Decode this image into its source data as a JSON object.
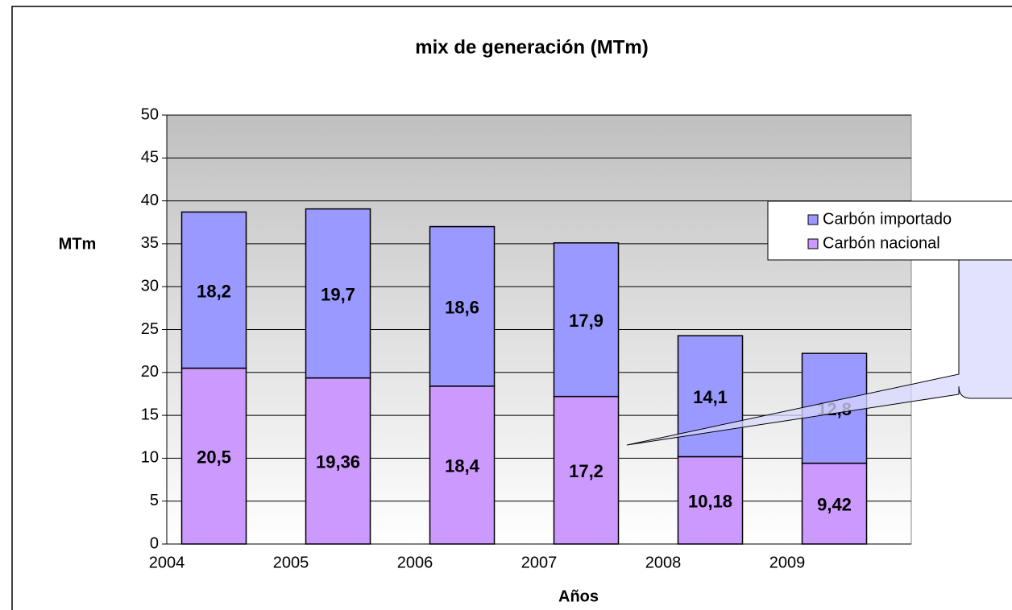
{
  "chart_data": {
    "type": "stacked-bar",
    "title": "mix de generación (MTm)",
    "x_label": "Años",
    "y_label": "MTm",
    "categories": [
      "2004",
      "2005",
      "2006",
      "2007",
      "2008",
      "2009"
    ],
    "series": [
      {
        "name": "Carbón nacional",
        "color": "#cc99ff",
        "values": [
          20.5,
          19.36,
          18.4,
          17.2,
          10.18,
          9.42
        ],
        "value_labels": [
          "20,5",
          "19,36",
          "18,4",
          "17,2",
          "10,18",
          "9,42"
        ]
      },
      {
        "name": "Carbón importado",
        "color": "#9999ff",
        "values": [
          18.2,
          19.7,
          18.6,
          17.9,
          14.1,
          12.8
        ],
        "value_labels": [
          "18,2",
          "19,7",
          "18,6",
          "17,9",
          "14,1",
          "12,8"
        ]
      }
    ],
    "ylim": [
      0,
      50
    ],
    "yticks": [
      0,
      5,
      10,
      15,
      20,
      25,
      30,
      35,
      40,
      45,
      50
    ],
    "grid": true,
    "legend": "right"
  }
}
